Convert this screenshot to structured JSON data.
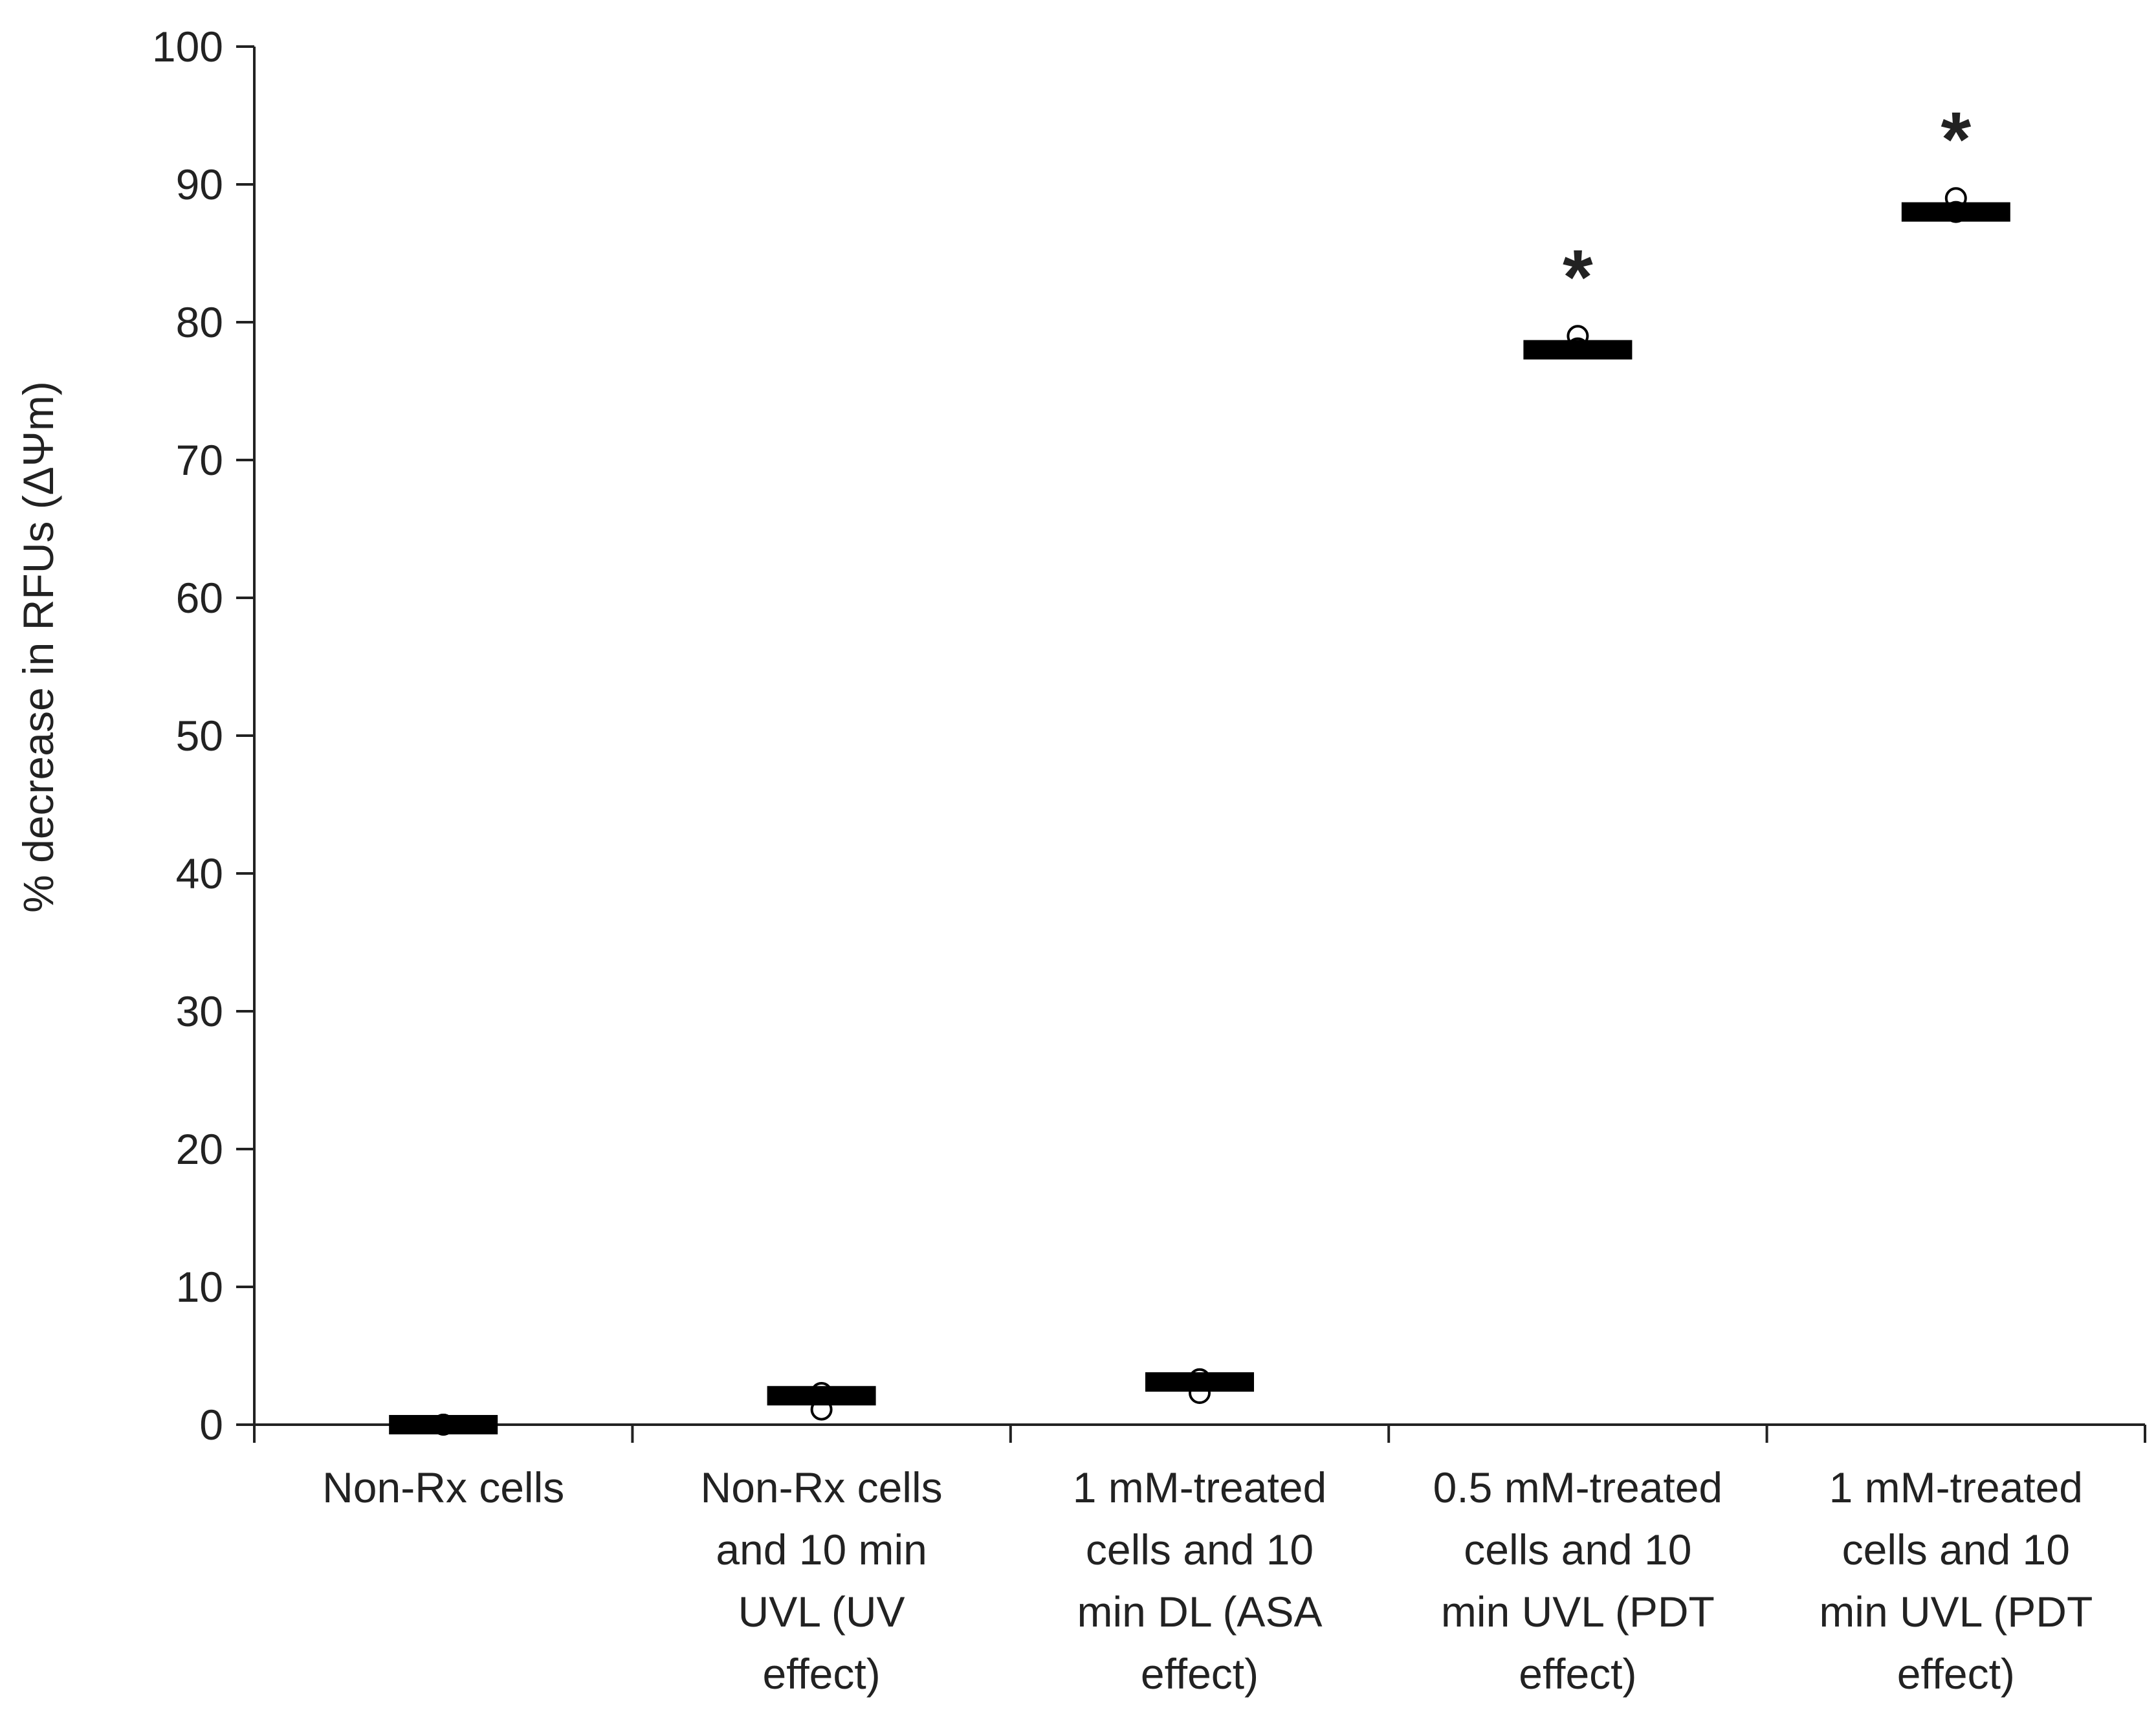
{
  "chart_data": {
    "type": "scatter",
    "ylabel": "% decrease in RFUs (ΔΨm)",
    "xlabel": "",
    "ylim": [
      0,
      100
    ],
    "yticks": [
      0,
      10,
      20,
      30,
      40,
      50,
      60,
      70,
      80,
      90,
      100
    ],
    "grid": false,
    "categories": [
      [
        "Non-Rx cells"
      ],
      [
        "Non-Rx cells",
        "and 10 min",
        "UVL (UV",
        "effect)"
      ],
      [
        "1 mM-treated",
        "cells and 10",
        "min DL (ASA",
        "effect)"
      ],
      [
        "0.5 mM-treated",
        "cells and 10",
        "min UVL (PDT",
        "effect)"
      ],
      [
        "1 mM-treated",
        "cells and 10",
        "min UVL (PDT",
        "effect)"
      ]
    ],
    "means": [
      0,
      2.1,
      3.1,
      78,
      88
    ],
    "points": [
      [
        0,
        0
      ],
      [
        1.1,
        2.3
      ],
      [
        2.3,
        3.3
      ],
      [
        78.1,
        79
      ],
      [
        88,
        89
      ]
    ],
    "significance": [
      "",
      "",
      "",
      "*",
      "*"
    ],
    "colors": {
      "mean_bar": "#000000",
      "point_stroke": "#000000",
      "axis": "#222222"
    }
  }
}
